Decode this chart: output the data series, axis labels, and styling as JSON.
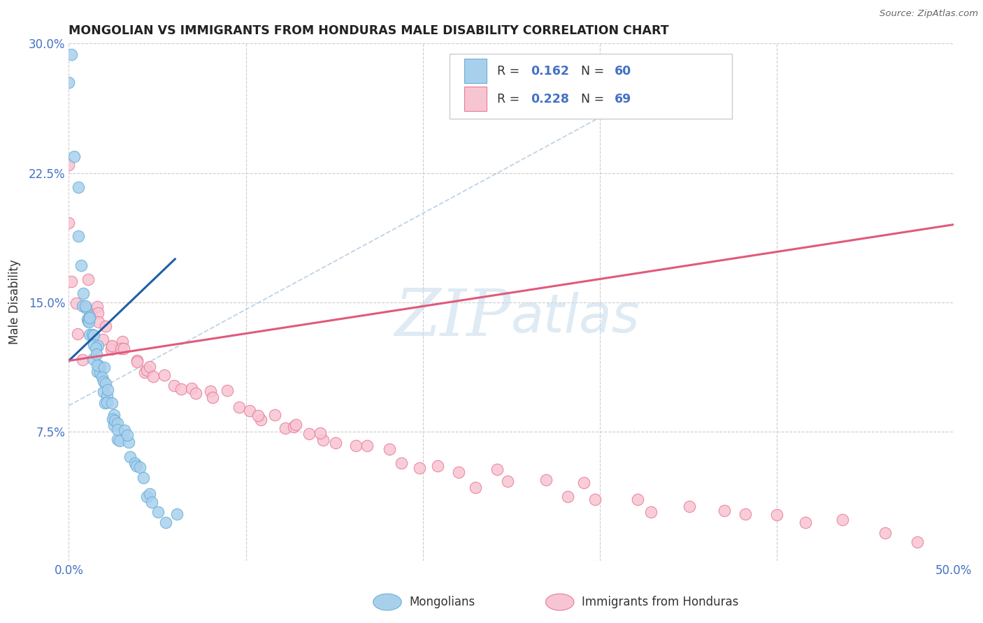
{
  "title": "MONGOLIAN VS IMMIGRANTS FROM HONDURAS MALE DISABILITY CORRELATION CHART",
  "source": "Source: ZipAtlas.com",
  "xlabel_mongolians": "Mongolians",
  "xlabel_honduras": "Immigrants from Honduras",
  "ylabel": "Male Disability",
  "xlim": [
    0.0,
    0.5
  ],
  "ylim": [
    0.0,
    0.3
  ],
  "color_mongolian_fill": "#a8d0ed",
  "color_mongolian_edge": "#6aaed6",
  "color_honduras_fill": "#f7c5d2",
  "color_honduras_edge": "#e8799a",
  "color_line_mongolian": "#1f5fa6",
  "color_line_honduras": "#e05a7a",
  "color_watermark": "#c8dded",
  "color_grid": "#cccccc",
  "color_tick": "#4472c4",
  "mongolian_x": [
    0.0,
    0.0,
    0.003,
    0.005,
    0.006,
    0.007,
    0.008,
    0.009,
    0.009,
    0.01,
    0.01,
    0.011,
    0.011,
    0.012,
    0.012,
    0.013,
    0.013,
    0.014,
    0.014,
    0.015,
    0.015,
    0.015,
    0.016,
    0.016,
    0.017,
    0.017,
    0.018,
    0.018,
    0.019,
    0.019,
    0.02,
    0.02,
    0.021,
    0.021,
    0.022,
    0.022,
    0.023,
    0.023,
    0.024,
    0.025,
    0.025,
    0.026,
    0.027,
    0.028,
    0.029,
    0.03,
    0.031,
    0.032,
    0.033,
    0.035,
    0.036,
    0.038,
    0.04,
    0.042,
    0.044,
    0.046,
    0.048,
    0.05,
    0.055,
    0.06
  ],
  "mongolian_y": [
    0.295,
    0.285,
    0.235,
    0.21,
    0.19,
    0.175,
    0.16,
    0.152,
    0.148,
    0.145,
    0.142,
    0.14,
    0.138,
    0.136,
    0.135,
    0.132,
    0.13,
    0.128,
    0.126,
    0.124,
    0.122,
    0.12,
    0.118,
    0.116,
    0.114,
    0.112,
    0.11,
    0.108,
    0.106,
    0.104,
    0.102,
    0.1,
    0.098,
    0.096,
    0.094,
    0.092,
    0.09,
    0.088,
    0.086,
    0.084,
    0.082,
    0.08,
    0.078,
    0.076,
    0.074,
    0.072,
    0.07,
    0.068,
    0.066,
    0.062,
    0.058,
    0.054,
    0.05,
    0.046,
    0.042,
    0.038,
    0.034,
    0.03,
    0.025,
    0.02
  ],
  "honduras_x": [
    0.0,
    0.0,
    0.0,
    0.004,
    0.005,
    0.006,
    0.01,
    0.012,
    0.014,
    0.016,
    0.018,
    0.02,
    0.022,
    0.024,
    0.026,
    0.028,
    0.03,
    0.032,
    0.035,
    0.038,
    0.04,
    0.042,
    0.045,
    0.048,
    0.05,
    0.055,
    0.06,
    0.065,
    0.07,
    0.075,
    0.08,
    0.085,
    0.09,
    0.095,
    0.1,
    0.105,
    0.11,
    0.115,
    0.12,
    0.125,
    0.13,
    0.135,
    0.14,
    0.145,
    0.15,
    0.16,
    0.17,
    0.18,
    0.19,
    0.2,
    0.21,
    0.22,
    0.23,
    0.24,
    0.25,
    0.27,
    0.28,
    0.29,
    0.3,
    0.32,
    0.33,
    0.35,
    0.37,
    0.38,
    0.4,
    0.42,
    0.44,
    0.46,
    0.48
  ],
  "honduras_y": [
    0.225,
    0.195,
    0.165,
    0.145,
    0.135,
    0.125,
    0.155,
    0.15,
    0.145,
    0.14,
    0.138,
    0.135,
    0.132,
    0.13,
    0.128,
    0.126,
    0.124,
    0.122,
    0.12,
    0.118,
    0.116,
    0.114,
    0.112,
    0.11,
    0.108,
    0.106,
    0.104,
    0.102,
    0.1,
    0.098,
    0.096,
    0.094,
    0.092,
    0.09,
    0.088,
    0.086,
    0.084,
    0.082,
    0.08,
    0.078,
    0.076,
    0.074,
    0.072,
    0.07,
    0.068,
    0.065,
    0.062,
    0.06,
    0.058,
    0.056,
    0.054,
    0.052,
    0.05,
    0.048,
    0.046,
    0.044,
    0.042,
    0.04,
    0.038,
    0.036,
    0.034,
    0.032,
    0.03,
    0.028,
    0.025,
    0.022,
    0.02,
    0.018,
    0.015
  ],
  "mon_line_x": [
    0.0,
    0.06
  ],
  "mon_line_y": [
    0.116,
    0.175
  ],
  "hon_line_x": [
    0.0,
    0.5
  ],
  "hon_line_y": [
    0.116,
    0.195
  ],
  "dash_line_x": [
    0.0,
    0.35
  ],
  "dash_line_y": [
    0.09,
    0.285
  ]
}
